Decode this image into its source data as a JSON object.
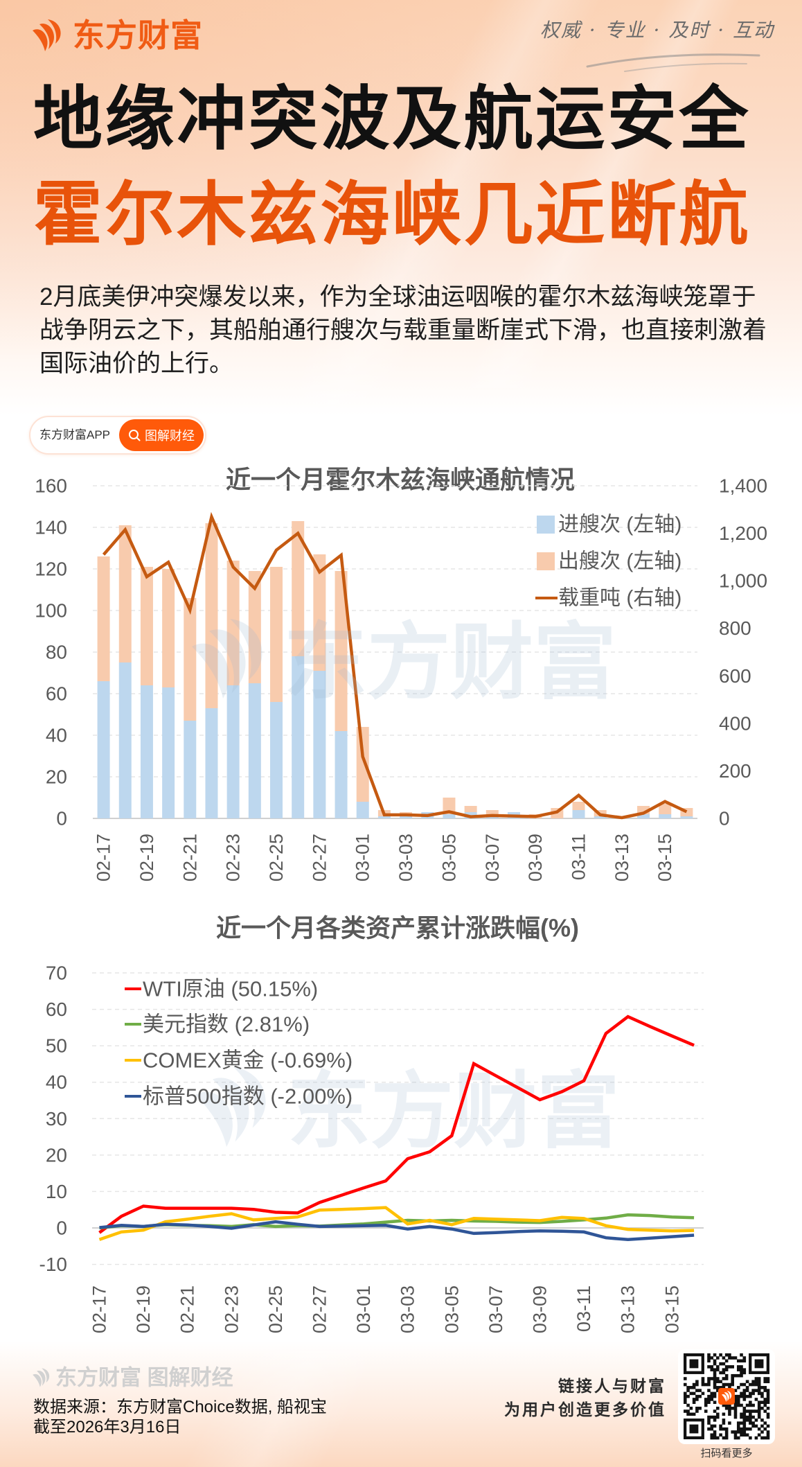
{
  "header": {
    "brand": "东方财富",
    "brand_icon": "dongfang-caifu-flame-icon",
    "tagline": "权威 · 专业 · 及时 · 互动",
    "colors": {
      "brand": "#f05b14",
      "headline_black": "#111111",
      "headline_orange": "#e8530a"
    }
  },
  "headline": {
    "line1": "地缘冲突波及航运安全",
    "line2": "霍尔木兹海峡几近断航"
  },
  "intro": {
    "lines": [
      "2月底美伊冲突爆发以来，作为全球油运咽喉的霍尔木兹海峡笼罩于",
      "战争阴云之下，其船舶通行艘次与载重量断崖式下滑，也直接刺激着",
      "国际油价的上行。"
    ]
  },
  "badge": {
    "app_label": "东方财富APP",
    "icon": "search-icon",
    "button_label": "图解财经",
    "button_color": "#ff5a0a"
  },
  "watermark": {
    "text": "东方财富"
  },
  "chart_data": [
    {
      "type": "bar+line",
      "title": "近一个月霍尔木兹海峡通航情况",
      "categories": [
        "02-17",
        "02-18",
        "02-19",
        "02-20",
        "02-21",
        "02-22",
        "02-23",
        "02-24",
        "02-25",
        "02-26",
        "02-27",
        "02-28",
        "03-01",
        "03-02",
        "03-03",
        "03-04",
        "03-05",
        "03-06",
        "03-07",
        "03-08",
        "03-09",
        "03-10",
        "03-11",
        "03-12",
        "03-13",
        "03-14",
        "03-15",
        "03-16"
      ],
      "x_tick_labels": [
        "02-17",
        "02-19",
        "02-21",
        "02-23",
        "02-25",
        "02-27",
        "03-01",
        "03-03",
        "03-05",
        "03-07",
        "03-09",
        "03-11",
        "03-13",
        "03-15"
      ],
      "series": [
        {
          "name": "进艘次 (左轴)",
          "type": "stacked-bar",
          "axis": "left",
          "color": "#bdd7ee",
          "values": [
            66,
            75,
            64,
            63,
            47,
            53,
            64,
            65,
            56,
            78,
            71,
            42,
            8,
            1,
            1,
            3,
            2,
            3,
            1,
            3,
            0,
            0,
            4,
            1,
            0,
            2,
            2,
            1
          ]
        },
        {
          "name": "出艘次 (左轴)",
          "type": "stacked-bar",
          "axis": "left",
          "color": "#f8cbad",
          "values": [
            60,
            66,
            57,
            57,
            59,
            89,
            60,
            54,
            65,
            65,
            56,
            77,
            36,
            3,
            2,
            0,
            8,
            3,
            3,
            0,
            2,
            5,
            4,
            3,
            1,
            4,
            5,
            4
          ]
        },
        {
          "name": "载重吨 (右轴)",
          "type": "line",
          "axis": "right",
          "color": "#c55a11",
          "values": [
            1110,
            1215,
            1017,
            1078,
            877,
            1269,
            1058,
            968,
            1129,
            1200,
            1037,
            1108,
            260,
            15,
            15,
            12,
            28,
            7,
            12,
            10,
            8,
            27,
            97,
            15,
            3,
            22,
            71,
            28
          ]
        }
      ],
      "y_left": {
        "min": 0,
        "max": 160,
        "ticks": [
          160,
          140,
          120,
          100,
          80,
          60,
          40,
          20,
          0
        ],
        "tick_labels": [
          "160",
          "140",
          "120",
          "100",
          "80",
          "60",
          "40",
          "20",
          "0"
        ]
      },
      "y_right": {
        "min": 0,
        "max": 1400,
        "ticks": [
          1400,
          1200,
          1000,
          800,
          600,
          400,
          200,
          0
        ],
        "tick_labels": [
          "1,400",
          "1,200",
          "1,000",
          "800",
          "600",
          "400",
          "200",
          "0"
        ]
      },
      "xlabel": "",
      "ylabel": "",
      "grid": true,
      "legend_position": "upper-right"
    },
    {
      "type": "line",
      "title": "近一个月各类资产累计涨跌幅(%)",
      "categories": [
        "02-17",
        "02-18",
        "02-19",
        "02-20",
        "02-21",
        "02-22",
        "02-23",
        "02-24",
        "02-25",
        "02-26",
        "02-27",
        "02-28",
        "03-01",
        "03-02",
        "03-03",
        "03-04",
        "03-05",
        "03-06",
        "03-07",
        "03-08",
        "03-09",
        "03-10",
        "03-11",
        "03-12",
        "03-13",
        "03-14",
        "03-15",
        "03-16"
      ],
      "x_tick_labels": [
        "02-17",
        "02-19",
        "02-21",
        "02-23",
        "02-25",
        "02-27",
        "03-01",
        "03-03",
        "03-05",
        "03-07",
        "03-09",
        "03-11",
        "03-13",
        "03-15"
      ],
      "series": [
        {
          "name": "WTI原油 (50.15%)",
          "color": "#ff0000",
          "values": [
            -1.3,
            3.2,
            6.0,
            5.4,
            5.4,
            5.4,
            5.4,
            5.1,
            4.3,
            4.1,
            7.0,
            9.0,
            11.0,
            12.9,
            19.0,
            20.9,
            25.3,
            45.1,
            41.8,
            38.5,
            35.2,
            37.4,
            40.4,
            53.4,
            58.0,
            55.3,
            52.7,
            50.15
          ]
        },
        {
          "name": "美元指数 (2.81%)",
          "color": "#70ad47",
          "values": [
            0.0,
            0.6,
            0.4,
            0.9,
            0.7,
            0.6,
            0.4,
            0.9,
            0.4,
            0.6,
            0.5,
            0.8,
            1.1,
            1.6,
            2.1,
            1.9,
            2.1,
            1.9,
            1.8,
            1.6,
            1.5,
            1.8,
            2.2,
            2.7,
            3.6,
            3.4,
            3.0,
            2.81
          ]
        },
        {
          "name": "COMEX黄金 (-0.69%)",
          "color": "#ffc000",
          "values": [
            -3.2,
            -1.1,
            -0.6,
            1.7,
            2.4,
            3.2,
            3.9,
            2.2,
            2.6,
            3.0,
            4.9,
            5.1,
            5.3,
            5.6,
            1.1,
            2.1,
            0.9,
            2.6,
            2.4,
            2.2,
            2.0,
            2.9,
            2.6,
            0.6,
            -0.4,
            -0.6,
            -0.8,
            -0.69
          ]
        },
        {
          "name": "标普500指数 (-2.00%)",
          "color": "#2f5597",
          "values": [
            0.1,
            0.7,
            0.4,
            1.0,
            0.8,
            0.4,
            -0.1,
            0.8,
            1.7,
            1.0,
            0.4,
            0.5,
            0.6,
            0.7,
            -0.3,
            0.4,
            -0.3,
            -1.5,
            -1.3,
            -1.0,
            -0.8,
            -0.9,
            -1.1,
            -2.7,
            -3.2,
            -2.8,
            -2.4,
            -2.0
          ]
        }
      ],
      "ylim": [
        -10,
        70
      ],
      "y_ticks": [
        70,
        60,
        50,
        40,
        30,
        20,
        10,
        0,
        -10
      ],
      "y_tick_labels": [
        "70",
        "60",
        "50",
        "40",
        "30",
        "20",
        "10",
        "0",
        "-10"
      ],
      "xlabel": "",
      "ylabel": "",
      "grid": true,
      "legend_position": "upper-left"
    }
  ],
  "footer": {
    "brand_watermark": "东方财富 图解财经",
    "source": "数据来源：东方财富Choice数据, 船视宝",
    "date": "截至2026年3月16日",
    "slogan_line1": "链接人与财富",
    "slogan_line2": "为用户创造更多价值",
    "qr_caption": "扫码看更多",
    "qr_icon": "qr-code-icon"
  }
}
